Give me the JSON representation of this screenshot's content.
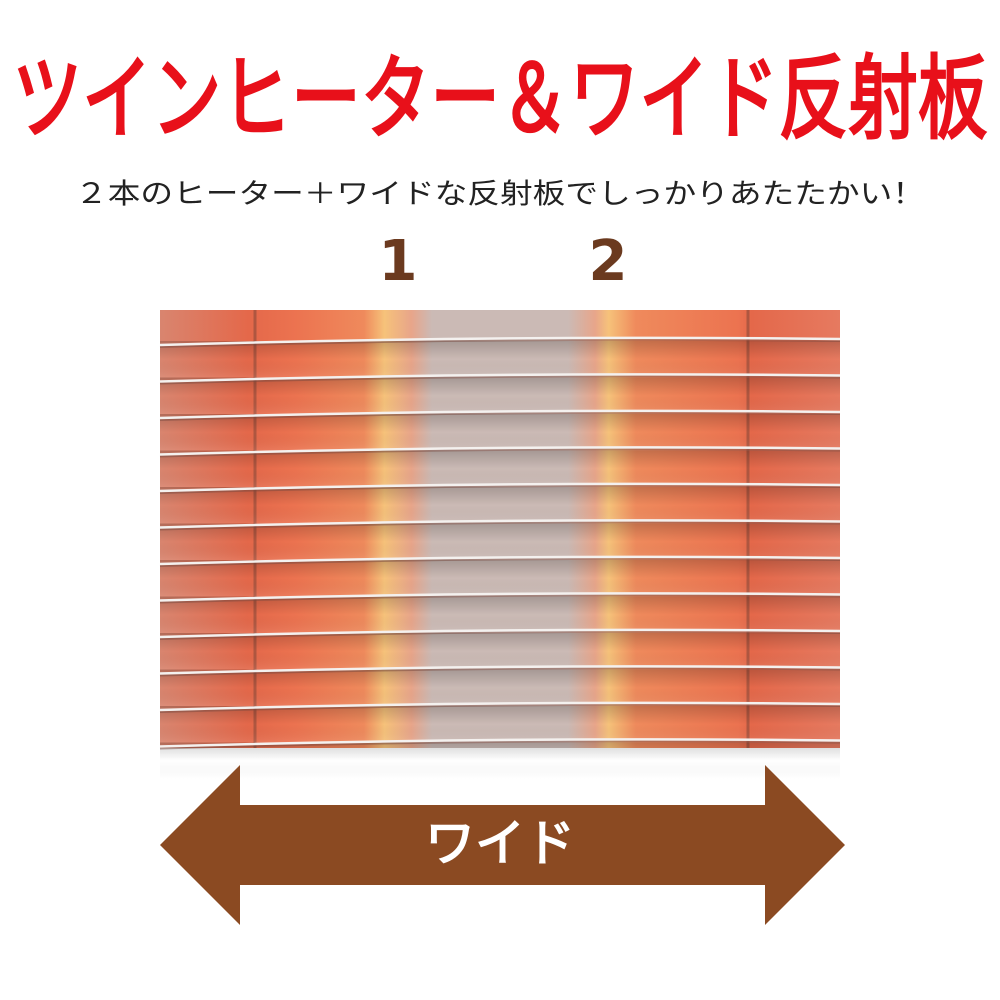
{
  "header": {
    "title": "ツインヒーター＆ワイド反射板",
    "subtitle": "２本のヒーター＋ワイドな反射板でしっかりあたたかい！"
  },
  "heater": {
    "labels": [
      "1",
      "2"
    ]
  },
  "arrow": {
    "label": "ワイド"
  }
}
